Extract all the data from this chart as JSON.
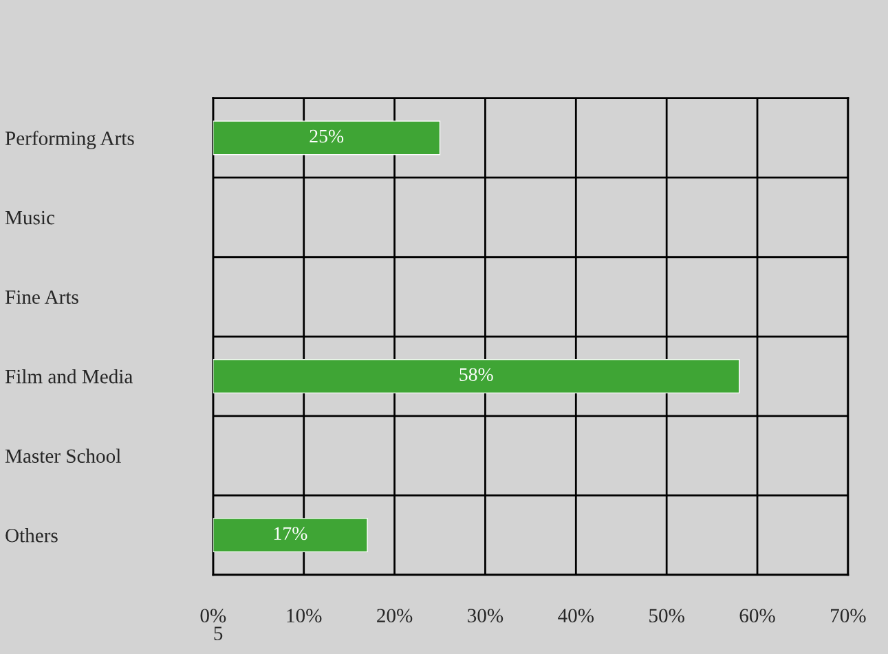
{
  "chart_data": {
    "type": "bar",
    "orientation": "horizontal",
    "categories": [
      "Performing Arts",
      "Music",
      "Fine Arts",
      "Film and Media",
      "Master School",
      "Others"
    ],
    "values": [
      25,
      null,
      null,
      58,
      null,
      17
    ],
    "color": "#3fa535",
    "xlim": [
      0,
      70
    ],
    "xticks": [
      {
        "value": 0,
        "label": "0%"
      },
      {
        "value": 10,
        "label": "10%"
      },
      {
        "value": 20,
        "label": "20%"
      },
      {
        "value": 30,
        "label": "30%"
      },
      {
        "value": 40,
        "label": "40%"
      },
      {
        "value": 50,
        "label": "50%"
      },
      {
        "value": 60,
        "label": "60%"
      },
      {
        "value": 70,
        "label": "70%"
      }
    ],
    "value_labels": [
      "25%",
      null,
      null,
      "58%",
      null,
      "17%"
    ],
    "grid": true,
    "legend": false,
    "annotations": [
      "5"
    ]
  }
}
